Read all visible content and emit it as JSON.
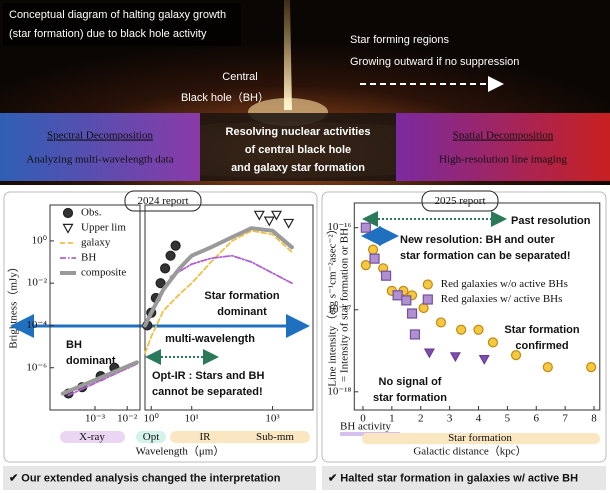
{
  "header": {
    "caption": [
      "Conceptual diagram of halting galaxy growth",
      "(star formation) due to black hole activity"
    ],
    "star_forming": [
      "Star forming regions",
      "Growing outward if no suppression"
    ],
    "black_hole": [
      "Central",
      "Black hole（BH）"
    ]
  },
  "banner": {
    "left_title": "Spectral Decomposition",
    "left_subtitle": "Analyzing multi-wavelength data",
    "center": [
      "Resolving nuclear activities",
      "of central black hole",
      "and galaxy star formation"
    ],
    "right_title": "Spatial Decomposition",
    "right_subtitle": "High-resolution line imaging"
  },
  "chart_data": [
    {
      "type": "line",
      "report": "2024 report",
      "xlabel": "Wavelength（μm）",
      "ylabel": "Brightness（mJy）",
      "xscale": "log",
      "yscale": "log",
      "xlim": [
        [
          4e-05,
          0.025
        ],
        [
          0.7,
          10000
        ]
      ],
      "ylim": [
        1e-08,
        50
      ],
      "xticks": [
        {
          "value": 0.001,
          "label": "10⁻³"
        },
        {
          "value": 0.01,
          "label": "10⁻²"
        },
        {
          "value": 1,
          "label": "10⁰"
        },
        {
          "value": 10,
          "label": "10¹"
        },
        {
          "value": 1000,
          "label": "10³"
        }
      ],
      "yticks": [
        {
          "value": 1e-06,
          "label": "10⁻⁶"
        },
        {
          "value": 0.0001,
          "label": "10⁻⁴"
        },
        {
          "value": 0.01,
          "label": "10⁻²"
        },
        {
          "value": 1,
          "label": "10⁰"
        }
      ],
      "legend": "upper left",
      "series": [
        {
          "name": "Obs.",
          "marker": "circle",
          "color": "#222222",
          "fill": "#333333",
          "x": [
            0.00015,
            0.0004,
            0.0015,
            0.004,
            0.8,
            1.0,
            1.3,
            1.7,
            2.2,
            3,
            4
          ],
          "values": [
            6e-08,
            1.2e-07,
            4e-07,
            1e-06,
            0.0001,
            0.0004,
            0.002,
            0.01,
            0.05,
            0.2,
            0.6
          ]
        },
        {
          "name": "Upper lim",
          "marker": "triangle-down",
          "color": "#222222",
          "fill": "#ffffff",
          "x": [
            470,
            830,
            1250,
            2500
          ],
          "values": [
            17,
            9,
            17,
            7
          ]
        },
        {
          "name": "galaxy",
          "linestyle": "dashed",
          "color": "#f0c040",
          "x": [
            0.7,
            1,
            2,
            5,
            10,
            30,
            100,
            300,
            1000,
            3000
          ],
          "values": [
            5e-06,
            3e-05,
            0.0005,
            0.003,
            0.01,
            0.1,
            1,
            3,
            2,
            0.3
          ]
        },
        {
          "name": "BH",
          "linestyle": "dashdot",
          "color": "#b060d0",
          "x": [
            0.00015,
            0.02,
            null,
            3,
            10,
            30,
            100,
            300,
            1000,
            3000
          ],
          "values": [
            5e-08,
            1.5e-06,
            null,
            0.02,
            0.08,
            0.15,
            0.2,
            0.1,
            0.03,
            0.01
          ]
        },
        {
          "name": "composite",
          "linestyle": "solid",
          "color": "#9a9a9a",
          "x": [
            0.0001,
            0.02,
            null,
            0.7,
            1,
            2,
            5,
            10,
            30,
            100,
            300,
            1000,
            3000
          ],
          "values": [
            6e-08,
            1.8e-06,
            null,
            0.0001,
            0.0004,
            0.005,
            0.05,
            0.2,
            0.5,
            1.5,
            4,
            3,
            0.5
          ]
        }
      ],
      "annotations": {
        "bh_dominant": [
          "BH",
          "dominant"
        ],
        "sf_dominant": [
          "Star formation",
          "dominant"
        ],
        "multi": "multi-wavelength",
        "opt_ir": [
          "Opt-IR : Stars and BH",
          "cannot be separated!"
        ]
      },
      "bands": [
        "X-ray",
        "Opt",
        "IR",
        "Sub-mm"
      ]
    },
    {
      "type": "scatter",
      "report": "2025 report",
      "xlabel": "Galactic distance（kpc）",
      "ylabel": [
        "Line intensity（erg s⁻¹cm⁻²asec⁻²）",
        "= Intensity of star formation or BH"
      ],
      "yscale": "log",
      "xlim": [
        -0.3,
        8.2
      ],
      "ylim": [
        6e-19,
        2e-16
      ],
      "xticks": [
        0,
        1,
        2,
        3,
        4,
        5,
        6,
        7,
        8
      ],
      "yticks": [
        {
          "value": 1e-18,
          "label": "10⁻¹⁸"
        },
        {
          "value": 1e-17,
          "label": "10⁻¹⁷"
        },
        {
          "value": 1e-16,
          "label": "10⁻¹⁶"
        }
      ],
      "legend": "center right",
      "series": [
        {
          "name": "Red galaxies w/o active BHs",
          "marker": "circle",
          "color": "#c08a10",
          "fill": "#f5c842",
          "x": [
            0.1,
            0.35,
            0.7,
            1.0,
            1.4,
            1.7,
            2.1,
            2.7,
            3.4,
            4.0,
            4.5,
            5.3,
            6.4,
            7.9
          ],
          "values": [
            3.5e-17,
            5.4e-17,
            3.2e-17,
            1.7e-17,
            1.7e-17,
            1.5e-17,
            1.05e-17,
            7e-18,
            5.7e-18,
            5.7e-18,
            4e-18,
            2.8e-18,
            2e-18,
            2e-18
          ]
        },
        {
          "name": "Red galaxies w/ active BHs",
          "marker": "square",
          "color": "#7050a0",
          "fill": "#b090d0",
          "x": [
            0.1,
            0.4,
            0.8,
            1.2,
            1.5,
            1.7,
            1.8
          ],
          "values": [
            1e-16,
            4.2e-17,
            2.6e-17,
            1.5e-17,
            1.3e-17,
            9e-18,
            5e-18
          ]
        },
        {
          "marker": "triangle-down",
          "color": "#6a3a9a",
          "fill": "#8050b0",
          "x": [
            2.3,
            3.2,
            4.2
          ],
          "values": [
            3e-18,
            2.7e-18,
            2.5e-18
          ]
        }
      ],
      "annotations": {
        "past": "Past resolution",
        "new": [
          "New resolution: BH and outer",
          "star formation can be separated!"
        ],
        "sf_confirmed": [
          "Star formation",
          "confirmed"
        ],
        "no_signal": [
          "No signal of",
          "star formation"
        ]
      },
      "bands": [
        "BH activity",
        "Star formation"
      ]
    }
  ],
  "footer": [
    "✔ Our extended analysis changed the interpretation",
    "✔ Halted star formation in galaxies w/ active BH"
  ]
}
